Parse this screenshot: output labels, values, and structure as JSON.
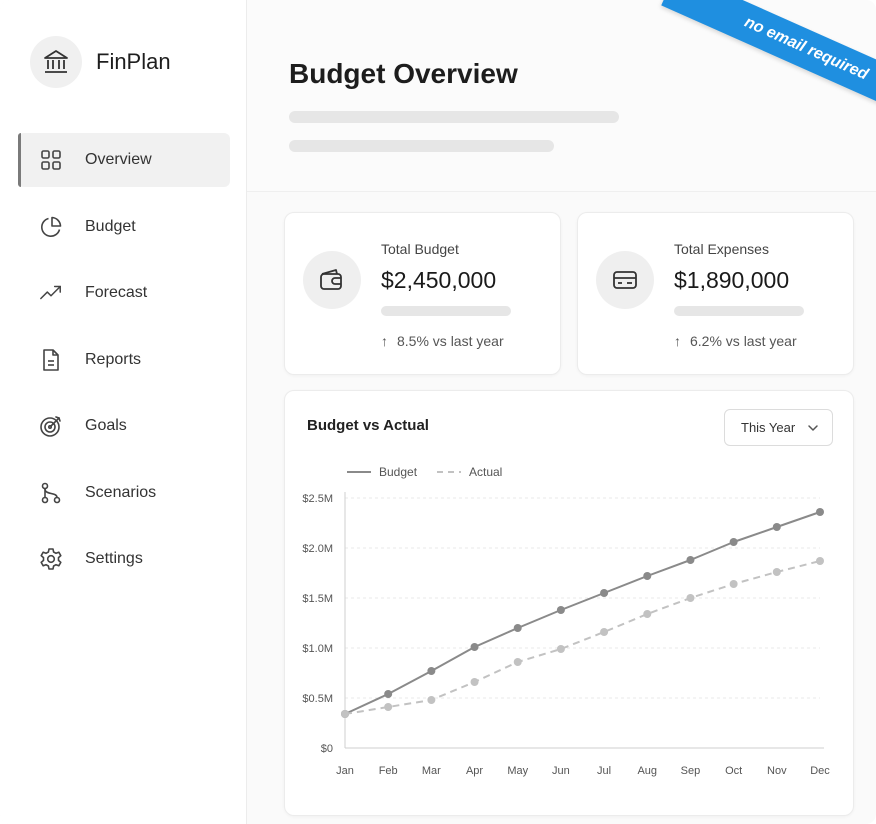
{
  "app": {
    "name": "FinPlan"
  },
  "sidebar": {
    "items": [
      {
        "label": "Overview",
        "icon": "grid-icon",
        "active": true
      },
      {
        "label": "Budget",
        "icon": "pie-chart-icon",
        "active": false
      },
      {
        "label": "Forecast",
        "icon": "trend-up-icon",
        "active": false
      },
      {
        "label": "Reports",
        "icon": "document-icon",
        "active": false
      },
      {
        "label": "Goals",
        "icon": "target-icon",
        "active": false
      },
      {
        "label": "Scenarios",
        "icon": "branch-icon",
        "active": false
      },
      {
        "label": "Settings",
        "icon": "gear-icon",
        "active": false
      }
    ]
  },
  "header": {
    "title": "Budget Overview"
  },
  "stats": [
    {
      "label": "Total Budget",
      "value": "$2,450,000",
      "change": "8.5% vs last year",
      "icon": "wallet-icon"
    },
    {
      "label": "Total Expenses",
      "value": "$1,890,000",
      "change": "6.2% vs last year",
      "icon": "credit-card-icon"
    }
  ],
  "chart_panel": {
    "title": "Budget vs Actual",
    "range_select": {
      "selected": "This Year"
    }
  },
  "ribbon": {
    "text": "no email required",
    "color": "#1f8fe0"
  },
  "chart_data": {
    "type": "line",
    "categories": [
      "Jan",
      "Feb",
      "Mar",
      "Apr",
      "May",
      "Jun",
      "Jul",
      "Aug",
      "Sep",
      "Oct",
      "Nov",
      "Dec"
    ],
    "series": [
      {
        "name": "Budget",
        "style": "solid",
        "color": "#8a8a8a",
        "values": [
          0.34,
          0.54,
          0.77,
          1.01,
          1.2,
          1.38,
          1.55,
          1.72,
          1.88,
          2.06,
          2.21,
          2.36
        ]
      },
      {
        "name": "Actual",
        "style": "dashed",
        "color": "#c2c2c2",
        "values": [
          0.34,
          0.41,
          0.48,
          0.66,
          0.86,
          0.99,
          1.16,
          1.34,
          1.5,
          1.64,
          1.76,
          1.87
        ]
      }
    ],
    "y_tick_labels": [
      "$0",
      "$0.5M",
      "$1.0M",
      "$1.5M",
      "$2.0M",
      "$2.5M"
    ],
    "y_unit": "millions USD",
    "ylim": [
      0,
      2.5
    ],
    "grid": true,
    "legend": "top-left"
  }
}
